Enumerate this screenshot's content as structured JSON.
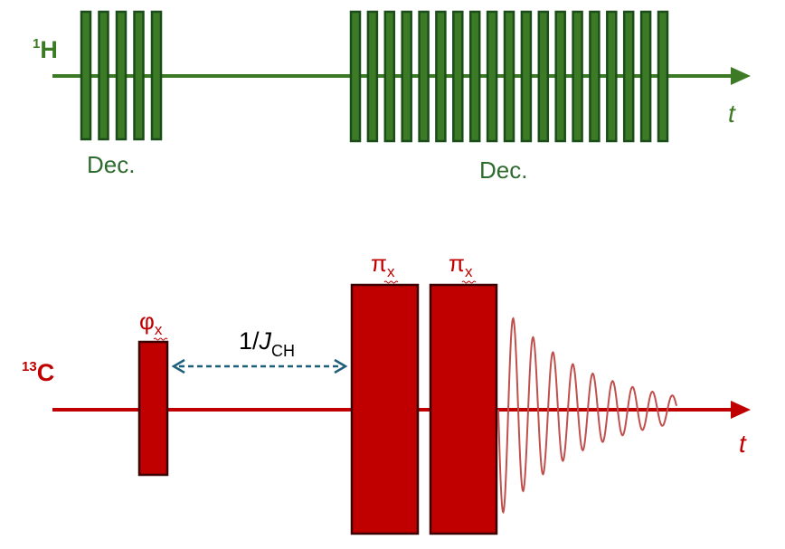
{
  "colors": {
    "proton": "#3c7a25",
    "proton_dark": "#1a4d1a",
    "proton_text": "#2f6b2f",
    "carbon": "#c00000",
    "carbon_dark": "#3b0000",
    "fid": "#c0504d",
    "delay_arrow": "#1f5f7a"
  },
  "proton_channel": {
    "sup": "1",
    "nucleus": "H",
    "time_label": "t",
    "decoupling_blocks": [
      {
        "label": "Dec.",
        "pulse_count": 5
      },
      {
        "label": "Dec.",
        "pulse_count": 19
      }
    ]
  },
  "carbon_channel": {
    "sup": "13",
    "nucleus": "C",
    "time_label": "t",
    "pulses": [
      {
        "symbol": "φ",
        "sub": "x"
      },
      {
        "symbol": "π",
        "sub": "x"
      },
      {
        "symbol": "π",
        "sub": "x"
      }
    ],
    "delay": {
      "prefix": "1/",
      "symbol": "J",
      "sub": "CH"
    },
    "signal": "fid"
  }
}
